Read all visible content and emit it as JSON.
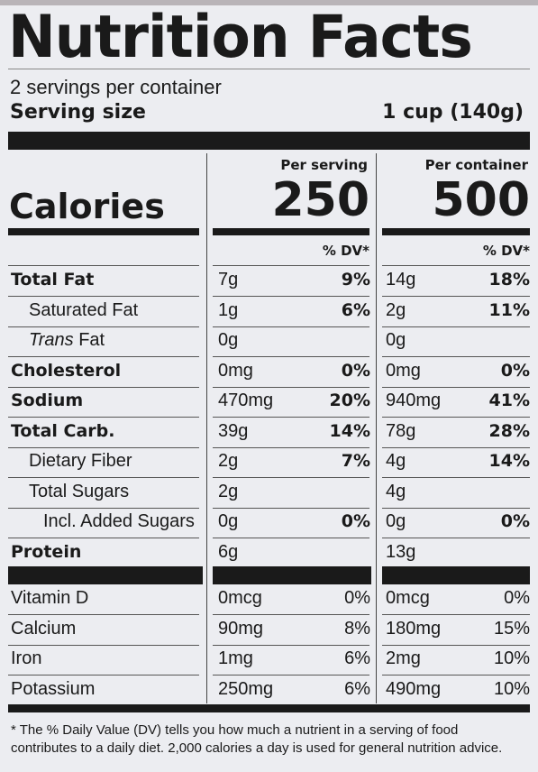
{
  "title": "Nutrition Facts",
  "servings_per_container": "2 servings per container",
  "serving_size_label": "Serving size",
  "serving_size_value": "1 cup (140g)",
  "per_serving_label": "Per serving",
  "per_container_label": "Per container",
  "calories_label": "Calories",
  "calories_serving": "250",
  "calories_container": "500",
  "dv_label": "% DV*",
  "nutrients": [
    {
      "name": "Total Fat",
      "bold": true,
      "indent": 0,
      "serving": "7g",
      "serving_dv": "9%",
      "container": "14g",
      "container_dv": "18%"
    },
    {
      "name": "Saturated Fat",
      "bold": false,
      "indent": 1,
      "serving": "1g",
      "serving_dv": "6%",
      "container": "2g",
      "container_dv": "11%"
    },
    {
      "name_italic": "Trans",
      "name": " Fat",
      "bold": false,
      "indent": 1,
      "serving": "0g",
      "serving_dv": "",
      "container": "0g",
      "container_dv": ""
    },
    {
      "name": "Cholesterol",
      "bold": true,
      "indent": 0,
      "serving": "0mg",
      "serving_dv": "0%",
      "container": "0mg",
      "container_dv": "0%"
    },
    {
      "name": "Sodium",
      "bold": true,
      "indent": 0,
      "serving": "470mg",
      "serving_dv": "20%",
      "container": "940mg",
      "container_dv": "41%"
    },
    {
      "name": "Total Carb.",
      "bold": true,
      "indent": 0,
      "serving": "39g",
      "serving_dv": "14%",
      "container": "78g",
      "container_dv": "28%"
    },
    {
      "name": "Dietary Fiber",
      "bold": false,
      "indent": 1,
      "serving": "2g",
      "serving_dv": "7%",
      "container": "4g",
      "container_dv": "14%"
    },
    {
      "name": "Total Sugars",
      "bold": false,
      "indent": 1,
      "serving": "2g",
      "serving_dv": "",
      "container": "4g",
      "container_dv": ""
    },
    {
      "name": "Incl. Added Sugars",
      "bold": false,
      "indent": 2,
      "serving": "0g",
      "serving_dv": "0%",
      "container": "0g",
      "container_dv": "0%"
    },
    {
      "name": "Protein",
      "bold": true,
      "indent": 0,
      "serving": "6g",
      "serving_dv": "",
      "container": "13g",
      "container_dv": ""
    }
  ],
  "vitamins": [
    {
      "name": "Vitamin D",
      "serving": "0mcg",
      "serving_dv": "0%",
      "container": "0mcg",
      "container_dv": "0%"
    },
    {
      "name": "Calcium",
      "serving": "90mg",
      "serving_dv": "8%",
      "container": "180mg",
      "container_dv": "15%"
    },
    {
      "name": "Iron",
      "serving": "1mg",
      "serving_dv": "6%",
      "container": "2mg",
      "container_dv": "10%"
    },
    {
      "name": "Potassium",
      "serving": "250mg",
      "serving_dv": "6%",
      "container": "490mg",
      "container_dv": "10%"
    }
  ],
  "footnote": "* The % Daily Value (DV) tells you how much a nutrient in a serving of food contributes to a daily diet. 2,000 calories a day is used for general nutrition advice."
}
